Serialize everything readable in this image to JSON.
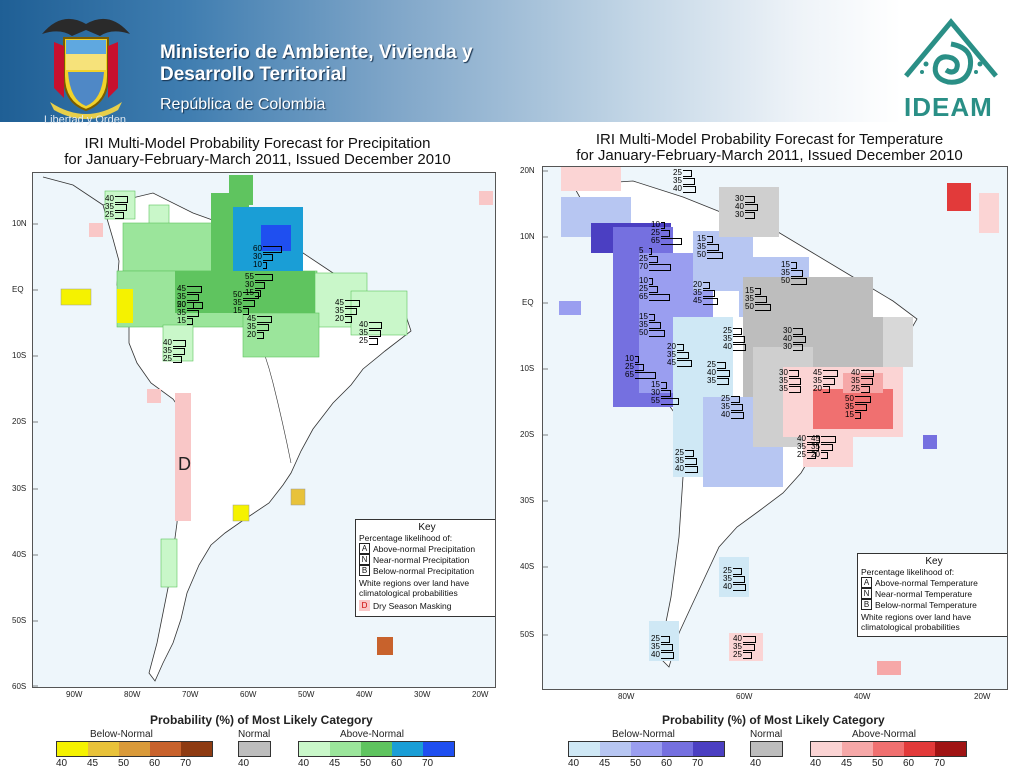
{
  "header": {
    "ministry_line1": "Ministerio de Ambiente, Vivienda y",
    "ministry_line2": "Desarrollo Territorial",
    "republic": "República de Colombia",
    "motto": "Libertad y Orden",
    "agency": "IDEAM",
    "crest_icon": "colombia-coat-of-arms-icon",
    "agency_logo_icon": "ideam-logo-icon"
  },
  "precip_panel": {
    "title_line1": "IRI Multi-Model Probability Forecast for Precipitation",
    "title_line2": "for January-February-March 2011, Issued December 2010",
    "lat_ticks": [
      "10N",
      "EQ",
      "10S",
      "20S",
      "30S",
      "40S",
      "50S",
      "60S"
    ],
    "lon_ticks": [
      "90W",
      "80W",
      "70W",
      "60W",
      "50W",
      "40W",
      "30W",
      "20W"
    ],
    "dry_season_label": "D",
    "key": {
      "title": "Key",
      "subtitle": "Percentage likelihood of:",
      "rows": [
        {
          "letter": "A",
          "text": "Above-normal Precipitation"
        },
        {
          "letter": "N",
          "text": "Near-normal Precipitation"
        },
        {
          "letter": "B",
          "text": "Below-normal Precipitation"
        }
      ],
      "note_line1": "White regions over land have",
      "note_line2": "climatological probabilities",
      "masking_letter": "D",
      "masking_text": "Dry Season Masking"
    },
    "annotations": [
      {
        "id": "p1",
        "values": [
          "40",
          "35",
          "25"
        ]
      },
      {
        "id": "p2",
        "values": [
          "60",
          "30",
          "10"
        ]
      },
      {
        "id": "p3",
        "values": [
          "55",
          "30",
          "15"
        ]
      },
      {
        "id": "p4",
        "values": [
          "50",
          "35",
          "15"
        ]
      },
      {
        "id": "p5",
        "values": [
          "45",
          "35",
          "20"
        ]
      },
      {
        "id": "p6",
        "values": [
          "50",
          "35",
          "15"
        ]
      },
      {
        "id": "p7",
        "values": [
          "45",
          "35",
          "20"
        ]
      },
      {
        "id": "p8",
        "values": [
          "45",
          "35",
          "20"
        ]
      },
      {
        "id": "p9",
        "values": [
          "40",
          "35",
          "25"
        ]
      },
      {
        "id": "p10",
        "values": [
          "40",
          "35",
          "25"
        ]
      }
    ],
    "legend": {
      "title": "Probability (%) of Most Likely Category",
      "below_label": "Below-Normal",
      "normal_label": "Normal",
      "above_label": "Above-Normal",
      "below_values": [
        "40",
        "45",
        "50",
        "60",
        "70"
      ],
      "normal_values": [
        "40"
      ],
      "above_values": [
        "40",
        "45",
        "50",
        "60",
        "70"
      ],
      "below_colors": [
        "#f5f200",
        "#e8c23a",
        "#d99a3a",
        "#c8622c",
        "#8e3b12"
      ],
      "normal_colors": [
        "#bdbdbd"
      ],
      "above_colors": [
        "#c9f7c9",
        "#9be59b",
        "#5fc45f",
        "#1a9ed6",
        "#1f4ff0"
      ]
    }
  },
  "temp_panel": {
    "title_line1": "IRI Multi-Model Probability Forecast for Temperature",
    "title_line2": "for January-February-March 2011, Issued December 2010",
    "lat_ticks": [
      "20N",
      "10N",
      "EQ",
      "10S",
      "20S",
      "30S",
      "40S",
      "50S"
    ],
    "lon_ticks": [
      "80W",
      "60W",
      "40W",
      "20W"
    ],
    "key": {
      "title": "Key",
      "subtitle": "Percentage likelihood of:",
      "rows": [
        {
          "letter": "A",
          "text": "Above-normal Temperature"
        },
        {
          "letter": "N",
          "text": "Near-normal Temperature"
        },
        {
          "letter": "B",
          "text": "Below-normal Temperature"
        }
      ],
      "note_line1": "White regions over land have",
      "note_line2": "climatological probabilities"
    },
    "annotations": [
      {
        "id": "t1",
        "values": [
          "25",
          "35",
          "40"
        ]
      },
      {
        "id": "t2",
        "values": [
          "30",
          "40",
          "30"
        ]
      },
      {
        "id": "t3",
        "values": [
          "10",
          "25",
          "65"
        ]
      },
      {
        "id": "t4",
        "values": [
          "15",
          "35",
          "50"
        ]
      },
      {
        "id": "t5",
        "values": [
          "5",
          "25",
          "70"
        ]
      },
      {
        "id": "t6",
        "values": [
          "15",
          "35",
          "50"
        ]
      },
      {
        "id": "t7",
        "values": [
          "10",
          "25",
          "65"
        ]
      },
      {
        "id": "t8",
        "values": [
          "20",
          "35",
          "45"
        ]
      },
      {
        "id": "t9",
        "values": [
          "15",
          "35",
          "50"
        ]
      },
      {
        "id": "t10",
        "values": [
          "15",
          "35",
          "50"
        ]
      },
      {
        "id": "t11",
        "values": [
          "25",
          "35",
          "40"
        ]
      },
      {
        "id": "t12",
        "values": [
          "30",
          "40",
          "30"
        ]
      },
      {
        "id": "t13",
        "values": [
          "20",
          "35",
          "45"
        ]
      },
      {
        "id": "t14",
        "values": [
          "10",
          "25",
          "65"
        ]
      },
      {
        "id": "t15",
        "values": [
          "25",
          "40",
          "35"
        ]
      },
      {
        "id": "t16",
        "values": [
          "30",
          "35",
          "35"
        ]
      },
      {
        "id": "t17",
        "values": [
          "45",
          "35",
          "20"
        ]
      },
      {
        "id": "t18",
        "values": [
          "40",
          "35",
          "25"
        ]
      },
      {
        "id": "t19",
        "values": [
          "15",
          "30",
          "55"
        ]
      },
      {
        "id": "t20",
        "values": [
          "25",
          "35",
          "40"
        ]
      },
      {
        "id": "t21",
        "values": [
          "50",
          "35",
          "15"
        ]
      },
      {
        "id": "t22",
        "values": [
          "40",
          "35",
          "25"
        ]
      },
      {
        "id": "t23",
        "values": [
          "45",
          "35",
          "20"
        ]
      },
      {
        "id": "t24",
        "values": [
          "25",
          "35",
          "40"
        ]
      },
      {
        "id": "t25",
        "values": [
          "25",
          "35",
          "40"
        ]
      },
      {
        "id": "t26",
        "values": [
          "25",
          "35",
          "40"
        ]
      },
      {
        "id": "t27",
        "values": [
          "40",
          "35",
          "25"
        ]
      }
    ],
    "legend": {
      "title": "Probability (%) of Most Likely Category",
      "below_label": "Below-Normal",
      "normal_label": "Normal",
      "above_label": "Above-Normal",
      "below_values": [
        "40",
        "45",
        "50",
        "60",
        "70"
      ],
      "normal_values": [
        "40"
      ],
      "above_values": [
        "40",
        "45",
        "50",
        "60",
        "70"
      ],
      "below_colors": [
        "#cfe8f5",
        "#b7c6f2",
        "#9a9ef0",
        "#7570e0",
        "#4b3fc2"
      ],
      "normal_colors": [
        "#bdbdbd"
      ],
      "above_colors": [
        "#fbd4d4",
        "#f6a8a8",
        "#f07070",
        "#e23a3a",
        "#a01414"
      ]
    }
  }
}
